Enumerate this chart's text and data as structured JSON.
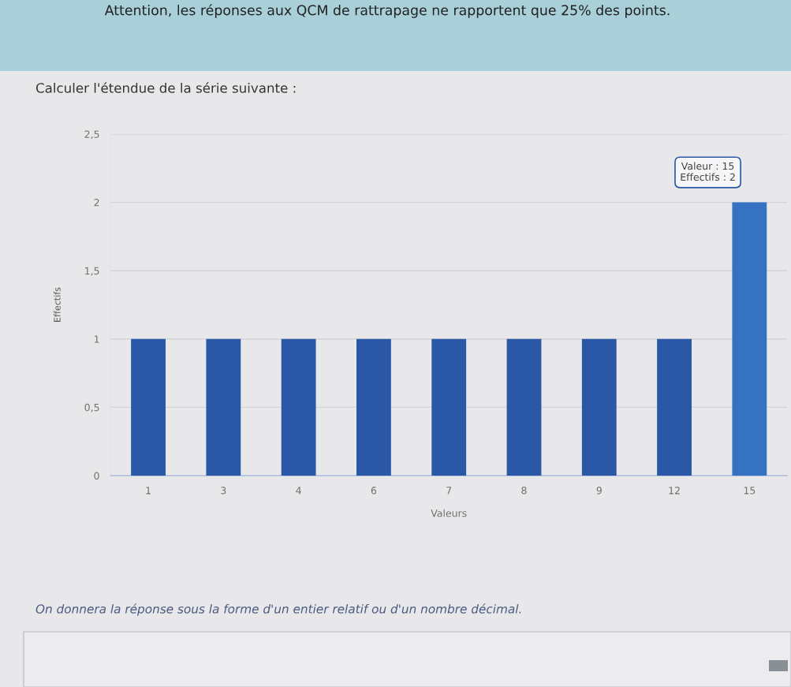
{
  "chart_data": {
    "type": "bar",
    "title": "Calculer l'étendue de la série suivante :",
    "xlabel": "Valeurs",
    "ylabel": "Effectifs",
    "categories": [
      "1",
      "3",
      "4",
      "6",
      "7",
      "8",
      "9",
      "12",
      "15"
    ],
    "values": [
      1,
      1,
      1,
      1,
      1,
      1,
      1,
      1,
      2
    ],
    "colors": [
      "#2a58a6",
      "#2a58a6",
      "#2a58a6",
      "#2a58a6",
      "#2a58a6",
      "#2a58a6",
      "#2a58a6",
      "#2a58a6",
      "#3572c2"
    ],
    "ylim": [
      0,
      2.5
    ],
    "yticks": [
      0,
      {
        "value": 0.5,
        "label": "0,5"
      },
      1,
      {
        "value": 1.5,
        "label": "1,5"
      },
      2,
      {
        "value": 2.5,
        "label": "2,5"
      }
    ],
    "grid": "y",
    "annotations": [
      "Attention, les réponses aux QCM de rattrapage ne rapportent que 25% des points.",
      "On donnera la réponse sous la forme d'un entier relatif ou d'un nombre décimal.",
      {
        "text": "Valeur : 15\nEffectifs : 2",
        "x": "15",
        "y": 2
      }
    ]
  }
}
